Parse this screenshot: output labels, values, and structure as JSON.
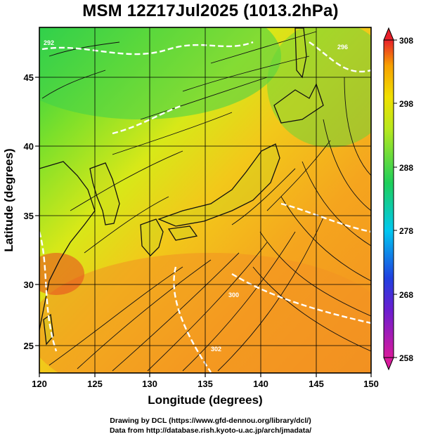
{
  "title": "MSM 12Z17Jul2025 (1013.2hPa)",
  "map": {
    "xaxis": {
      "label": "Longitude (degrees)",
      "range": [
        120,
        150
      ],
      "ticks": [
        "120",
        "125",
        "130",
        "135",
        "140",
        "145",
        "150"
      ]
    },
    "yaxis": {
      "label": "Latitude  (degrees)",
      "range": [
        22.5,
        47.5
      ],
      "ticks": [
        "25",
        "30",
        "35",
        "40",
        "45"
      ]
    },
    "grid": true,
    "field": "temperature (K) with surface wind streamlines",
    "contour_labels": [
      "292",
      "296",
      "300",
      "302"
    ]
  },
  "colorbar": {
    "ticks": [
      "308",
      "298",
      "288",
      "278",
      "268",
      "258"
    ],
    "min": 258,
    "max": 308,
    "colors": [
      "#d81a9c",
      "#2040e0",
      "#00c8f0",
      "#1ecf5a",
      "#b8e81e",
      "#f0e000",
      "#f7a000",
      "#e8202a"
    ]
  },
  "credits": {
    "line1": "Drawing by DCL (https://www.gfd-dennou.org/library/dcl/)",
    "line2": "Data from http://database.rish.kyoto-u.ac.jp/arch/jmadata/"
  }
}
